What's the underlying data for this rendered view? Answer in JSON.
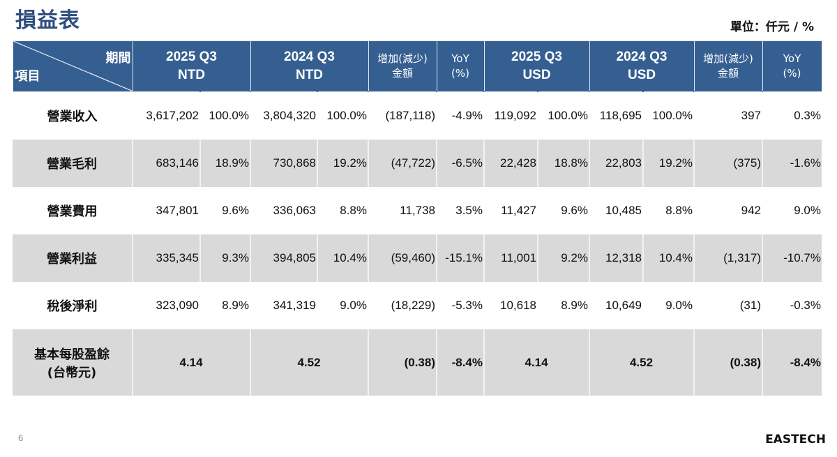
{
  "slide": {
    "title": "損益表",
    "unit": "單位：仟元 / %",
    "page_number": "6",
    "logo_text": "EASTECH"
  },
  "table": {
    "corner_top": "期間",
    "corner_bottom": "項目",
    "headers": [
      {
        "line1": "2025 Q3",
        "line2": "NTD"
      },
      {
        "line1": "2024 Q3",
        "line2": "NTD"
      },
      {
        "line1": "增加(減少)",
        "line2": "金額"
      },
      {
        "line1": "YoY",
        "line2": "(%)"
      },
      {
        "line1": "2025 Q3",
        "line2": "USD"
      },
      {
        "line1": "2024 Q3",
        "line2": "USD"
      },
      {
        "line1": "增加(減少)",
        "line2": "金額"
      },
      {
        "line1": "YoY",
        "line2": "(%)"
      }
    ],
    "rows": [
      {
        "label": "營業收入",
        "cells": [
          "3,617,202",
          "100.0%",
          "3,804,320",
          "100.0%",
          "(187,118)",
          "-4.9%",
          "119,092",
          "100.0%",
          "118,695",
          "100.0%",
          "397",
          "0.3%"
        ]
      },
      {
        "label": "營業毛利",
        "cells": [
          "683,146",
          "18.9%",
          "730,868",
          "19.2%",
          "(47,722)",
          "-6.5%",
          "22,428",
          "18.8%",
          "22,803",
          "19.2%",
          "(375)",
          "-1.6%"
        ]
      },
      {
        "label": "營業費用",
        "cells": [
          "347,801",
          "9.6%",
          "336,063",
          "8.8%",
          "11,738",
          "3.5%",
          "11,427",
          "9.6%",
          "10,485",
          "8.8%",
          "942",
          "9.0%"
        ]
      },
      {
        "label": "營業利益",
        "cells": [
          "335,345",
          "9.3%",
          "394,805",
          "10.4%",
          "(59,460)",
          "-15.1%",
          "11,001",
          "9.2%",
          "12,318",
          "10.4%",
          "(1,317)",
          "-10.7%"
        ]
      },
      {
        "label": "稅後淨利",
        "cells": [
          "323,090",
          "8.9%",
          "341,319",
          "9.0%",
          "(18,229)",
          "-5.3%",
          "10,618",
          "8.9%",
          "10,649",
          "9.0%",
          "(31)",
          "-0.3%"
        ]
      }
    ],
    "eps_row": {
      "label_line1": "基本每股盈餘",
      "label_line2": "(台幣元)",
      "cells": [
        "4.14",
        "4.52",
        "(0.38)",
        "-8.4%",
        "4.14",
        "4.52",
        "(0.38)",
        "-8.4%"
      ]
    }
  },
  "colors": {
    "header_bg": "#365f91",
    "title": "#2e4e7e",
    "stripe": "#d9d9d9"
  }
}
